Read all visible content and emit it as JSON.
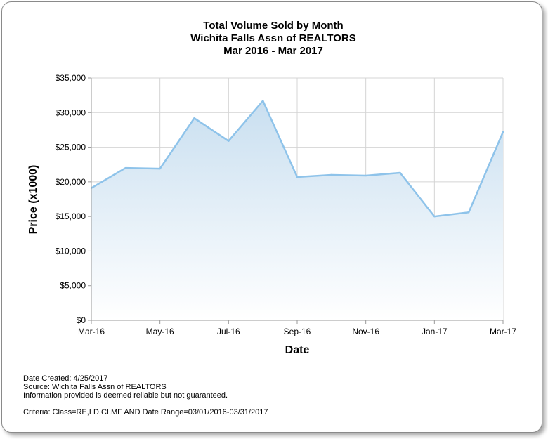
{
  "chart_data": {
    "type": "area",
    "title": "Total Volume Sold by Month",
    "subtitle": "Wichita Falls Assn of REALTORS",
    "period": "Mar 2016 - Mar 2017",
    "xlabel": "Date",
    "ylabel": "Price (x1000)",
    "x_tick_labels": [
      "Mar-16",
      "May-16",
      "Jul-16",
      "Sep-16",
      "Nov-16",
      "Jan-17",
      "Mar-17"
    ],
    "y_tick_labels": [
      "$0",
      "$5,000",
      "$10,000",
      "$15,000",
      "$20,000",
      "$25,000",
      "$30,000",
      "$35,000"
    ],
    "ylim": [
      0,
      35000
    ],
    "grid": true,
    "x": [
      "2016-03",
      "2016-04",
      "2016-05",
      "2016-06",
      "2016-07",
      "2016-08",
      "2016-09",
      "2016-10",
      "2016-11",
      "2016-12",
      "2017-01",
      "2017-02",
      "2017-03"
    ],
    "series": [
      {
        "values": [
          19100,
          22000,
          21900,
          29200,
          25900,
          31700,
          20700,
          21000,
          20900,
          21300,
          15000,
          15600,
          27200
        ]
      }
    ],
    "colors": {
      "line": "#8ec3ea",
      "fill_top": "#c9dff0",
      "fill_bottom": "#ffffff",
      "grid": "#d4d4d4"
    }
  },
  "footer": {
    "date_created": "Date Created: 4/25/2017",
    "source": "Source: Wichita Falls Assn of REALTORS",
    "disclaimer": "Information provided is deemed reliable but not guaranteed.",
    "criteria": "Criteria: Class=RE,LD,CI,MF AND Date Range=03/01/2016-03/31/2017"
  }
}
